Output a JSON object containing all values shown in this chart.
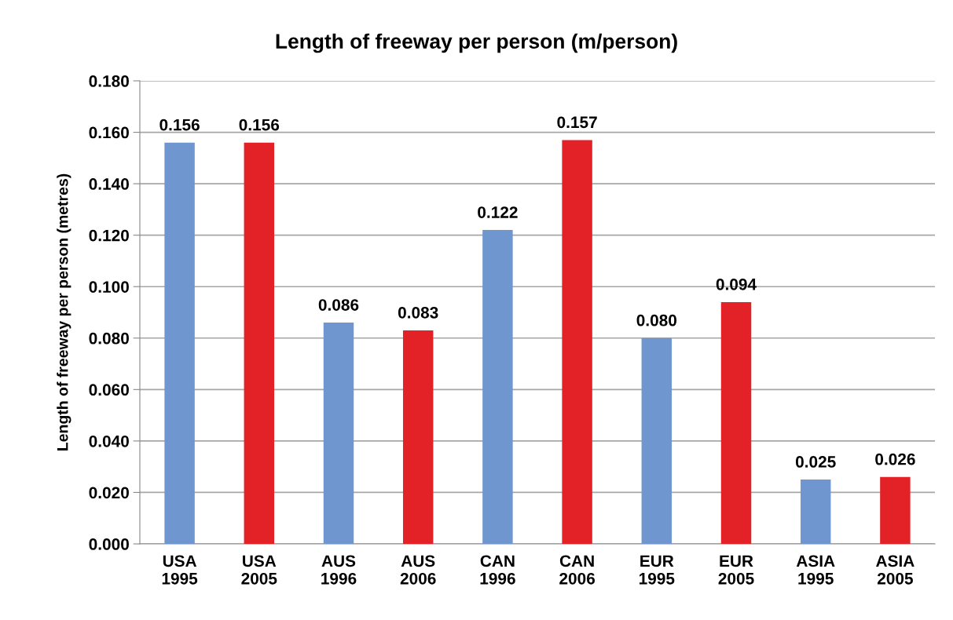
{
  "chart_data": {
    "type": "bar",
    "title": "Length of freeway per person (m/person)",
    "ylabel": "Length of freeway per person (metres)",
    "categories": [
      "USA\n1995",
      "USA\n2005",
      "AUS\n1996",
      "AUS\n2006",
      "CAN\n1996",
      "CAN\n2006",
      "EUR\n1995",
      "EUR\n2005",
      "ASIA\n1995",
      "ASIA\n2005"
    ],
    "values": [
      0.156,
      0.156,
      0.086,
      0.083,
      0.122,
      0.157,
      0.08,
      0.094,
      0.025,
      0.026
    ],
    "value_labels": [
      "0.156",
      "0.156",
      "0.086",
      "0.083",
      "0.122",
      "0.157",
      "0.080",
      "0.094",
      "0.025",
      "0.026"
    ],
    "colors": [
      "#6f96cf",
      "#e32228",
      "#6f96cf",
      "#e32228",
      "#6f96cf",
      "#e32228",
      "#6f96cf",
      "#e32228",
      "#6f96cf",
      "#e32228"
    ],
    "ylim": [
      0,
      0.18
    ],
    "yticks": [
      {
        "value": 0,
        "label": "0.000"
      },
      {
        "value": 0.02,
        "label": "0.020"
      },
      {
        "value": 0.04,
        "label": "0.040"
      },
      {
        "value": 0.06,
        "label": "0.060"
      },
      {
        "value": 0.08,
        "label": "0.080"
      },
      {
        "value": 0.1,
        "label": "0.100"
      },
      {
        "value": 0.12,
        "label": "0.120"
      },
      {
        "value": 0.14,
        "label": "0.140"
      },
      {
        "value": 0.16,
        "label": "0.160"
      },
      {
        "value": 0.18,
        "label": "0.180"
      }
    ],
    "grid": "y",
    "legend": false
  }
}
